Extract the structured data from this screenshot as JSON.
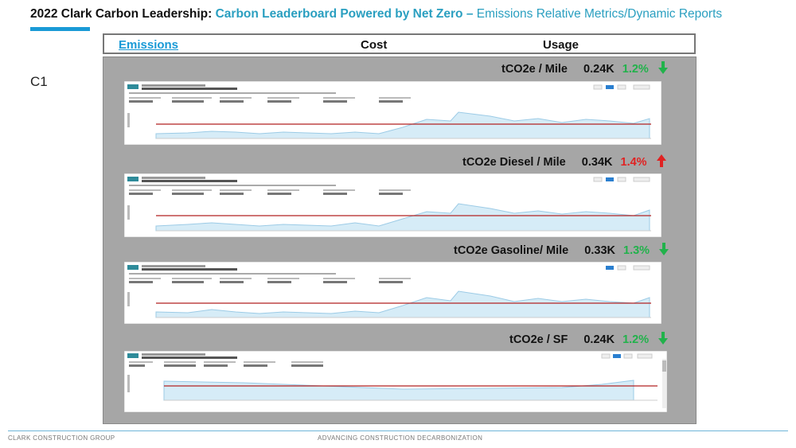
{
  "header": {
    "title_part1": "2022 Clark Carbon Leadership: ",
    "title_part2": "Carbon Leaderboard Powered by Net Zero – ",
    "title_part3": "Emissions Relative Metrics/Dynamic Reports"
  },
  "slide_label": "C1",
  "tabs": [
    {
      "label": "Emissions",
      "active": true
    },
    {
      "label": "Cost",
      "active": false
    },
    {
      "label": "Usage",
      "active": false
    }
  ],
  "metrics": [
    {
      "label": "tCO2e / Mile",
      "value": "0.24K",
      "pct": "1.2%",
      "direction": "down",
      "color": "#21b24b"
    },
    {
      "label": "tCO2e Diesel  / Mile",
      "value": "0.34K",
      "pct": "1.4%",
      "direction": "up",
      "color": "#e02222"
    },
    {
      "label": "tCO2e Gasoline/ Mile",
      "value": "0.33K",
      "pct": "1.3%",
      "direction": "down",
      "color": "#21b24b"
    },
    {
      "label": "tCO2e / SF",
      "value": "0.24K",
      "pct": "1.2%",
      "direction": "down",
      "color": "#21b24b"
    }
  ],
  "footer": {
    "left": "CLARK CONSTRUCTION GROUP",
    "center": "ADVANCING CONSTRUCTION DECARBONIZATION"
  },
  "colors": {
    "accent": "#1a9ad6",
    "teal": "#2a9fc0",
    "panel": "#a6a6a6",
    "green": "#21b24b",
    "red": "#e02222"
  }
}
